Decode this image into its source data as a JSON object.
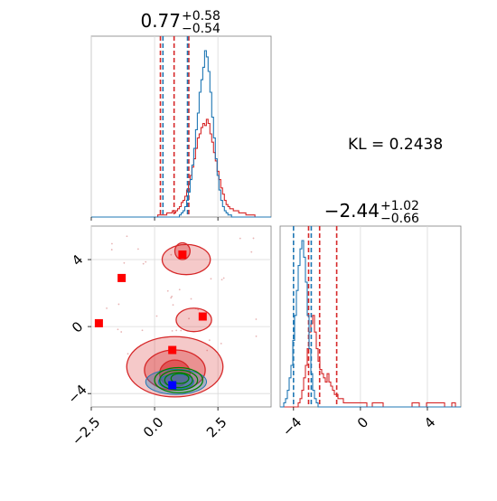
{
  "chart_data": [
    {
      "type": "histogram",
      "panel": "marginal-param-1",
      "title": {
        "base": "0.77",
        "plus": "+0.58",
        "minus": "−0.54"
      },
      "xlim": [
        -2.5,
        4.6
      ],
      "x_ticks": [
        -2.5,
        0.0,
        2.5
      ],
      "grid": true,
      "colors": {
        "red": "#d62728",
        "blue": "#1f77b4"
      },
      "series": [
        {
          "color": "#d62728",
          "quantiles": [
            0.23,
            0.77,
            1.35
          ],
          "bins_range": [
            -2.5,
            4.6
          ],
          "values": [
            0,
            0,
            0,
            0,
            0,
            0,
            0,
            0,
            0,
            0,
            0,
            0,
            0,
            0,
            0,
            0,
            0,
            0,
            0,
            0,
            0,
            0,
            0,
            0,
            0,
            0,
            0,
            0,
            0,
            0,
            0,
            0,
            0,
            0,
            0,
            0,
            0,
            1,
            1,
            1,
            1,
            1,
            2,
            2,
            2,
            3,
            2,
            3,
            4,
            5,
            7,
            8,
            10,
            13,
            16,
            20,
            24,
            28,
            33,
            38,
            40,
            43,
            45,
            44,
            47,
            45,
            40,
            36,
            31,
            27,
            22,
            18,
            14,
            11,
            8,
            6,
            5,
            4,
            4,
            3,
            3,
            3,
            2,
            2,
            2,
            2,
            1,
            1,
            1,
            1,
            1,
            0,
            0,
            0,
            0,
            0,
            0,
            0,
            0,
            0
          ]
        },
        {
          "color": "#1f77b4",
          "quantiles": [
            0.33,
            1.3
          ],
          "bins_range": [
            -2.5,
            4.6
          ],
          "values": [
            0,
            0,
            0,
            0,
            0,
            0,
            0,
            0,
            0,
            0,
            0,
            0,
            0,
            0,
            0,
            0,
            0,
            0,
            0,
            0,
            0,
            0,
            0,
            0,
            0,
            0,
            0,
            0,
            0,
            0,
            0,
            0,
            0,
            0,
            0,
            0,
            0,
            0,
            0,
            0,
            0,
            0,
            0,
            0,
            0,
            0,
            0,
            0,
            0,
            1,
            2,
            3,
            5,
            8,
            12,
            18,
            25,
            33,
            42,
            50,
            60,
            66,
            72,
            80,
            77,
            70,
            60,
            48,
            38,
            28,
            20,
            13,
            8,
            5,
            3,
            2,
            1,
            1,
            0,
            0,
            0,
            0,
            0,
            0,
            0,
            0,
            0,
            0,
            0,
            0,
            0,
            0,
            0,
            0,
            0,
            0,
            0,
            0,
            0,
            0
          ]
        }
      ]
    },
    {
      "type": "histogram",
      "panel": "marginal-param-2",
      "title": {
        "base": "−2.44",
        "plus": "+1.02",
        "minus": "−0.66"
      },
      "xlim": [
        -4.8,
        6.0
      ],
      "x_ticks": [
        -4,
        0,
        4
      ],
      "grid": true,
      "series": [
        {
          "color": "#d62728",
          "quantiles": [
            -3.1,
            -2.44,
            -1.42
          ],
          "bins_range": [
            -4.8,
            6.0
          ],
          "values": [
            0,
            0,
            0,
            0,
            0,
            0,
            0,
            0,
            0,
            0,
            1,
            2,
            4,
            7,
            10,
            14,
            18,
            20,
            22,
            18,
            14,
            11,
            9,
            8,
            7,
            6,
            8,
            6,
            5,
            4,
            3,
            3,
            2,
            2,
            2,
            1,
            1,
            1,
            1,
            1,
            1,
            1,
            1,
            1,
            1,
            1,
            1,
            1,
            0,
            0,
            0,
            1,
            1,
            1,
            1,
            1,
            1,
            0,
            0,
            0,
            0,
            0,
            0,
            0,
            0,
            0,
            0,
            0,
            0,
            0,
            0,
            0,
            0,
            1,
            1,
            1,
            1,
            0,
            0,
            0,
            0,
            1,
            1,
            1,
            1,
            1,
            1,
            1,
            1,
            1,
            1,
            0,
            0,
            0,
            0,
            1,
            1,
            0,
            0,
            0
          ]
        },
        {
          "color": "#1f77b4",
          "quantiles": [
            -4.0,
            -2.94
          ],
          "bins_range": [
            -4.8,
            6.0
          ],
          "values": [
            0,
            0,
            1,
            2,
            4,
            7,
            10,
            16,
            22,
            28,
            34,
            38,
            40,
            36,
            30,
            22,
            14,
            8,
            4,
            2,
            1,
            0,
            0,
            0,
            0,
            0,
            0,
            0,
            0,
            0,
            0,
            0,
            0,
            0,
            0,
            0,
            0,
            0,
            0,
            0,
            0,
            0,
            0,
            0,
            0,
            0,
            0,
            0,
            0,
            0,
            0,
            0,
            0,
            0,
            0,
            0,
            0,
            0,
            0,
            0,
            0,
            0,
            0,
            0,
            0,
            0,
            0,
            0,
            0,
            0,
            0,
            0,
            0,
            0,
            0,
            0,
            0,
            0,
            0,
            0,
            0,
            0,
            0,
            0,
            0,
            0,
            0,
            0,
            0,
            0,
            0,
            0,
            0,
            0,
            0,
            0,
            0,
            0,
            0,
            0
          ]
        }
      ]
    },
    {
      "type": "contour",
      "panel": "joint-param-1-vs-param-2",
      "xlim": [
        -2.5,
        4.6
      ],
      "ylim": [
        -4.8,
        6.0
      ],
      "x_ticks": [
        -2.5,
        0.0,
        2.5
      ],
      "y_ticks": [
        -4,
        0,
        4
      ],
      "grid": true,
      "red_contours": [
        {
          "level": "outer",
          "center": [
            0.8,
            -2.4
          ],
          "rx": 1.9,
          "ry": 1.8
        },
        {
          "level": "outer",
          "center": [
            1.25,
            4.0
          ],
          "rx": 0.95,
          "ry": 0.9
        },
        {
          "level": "outer",
          "center": [
            1.55,
            0.4
          ],
          "rx": 0.7,
          "ry": 0.7
        },
        {
          "level": "mid",
          "center": [
            0.8,
            -2.6
          ],
          "rx": 1.2,
          "ry": 1.2
        },
        {
          "level": "mid",
          "center": [
            1.1,
            4.5
          ],
          "rx": 0.3,
          "ry": 0.5
        },
        {
          "level": "inner",
          "center": [
            0.8,
            -2.8
          ],
          "rx": 0.6,
          "ry": 0.8
        }
      ],
      "blue_contours": [
        {
          "center": [
            0.85,
            -3.3
          ],
          "rx": 1.2,
          "ry": 0.75
        },
        {
          "center": [
            0.85,
            -3.3
          ],
          "rx": 0.7,
          "ry": 0.45
        }
      ],
      "green_contours": [
        {
          "center": [
            0.95,
            -3.2
          ],
          "rx": 0.95,
          "ry": 0.75
        },
        {
          "center": [
            0.95,
            -3.2
          ],
          "rx": 0.75,
          "ry": 0.6
        },
        {
          "center": [
            0.95,
            -3.2
          ],
          "rx": 0.55,
          "ry": 0.45
        },
        {
          "center": [
            1.0,
            -3.1
          ],
          "rx": 0.35,
          "ry": 0.3
        }
      ],
      "red_markers": [
        [
          -2.2,
          0.2
        ],
        [
          -1.3,
          2.9
        ],
        [
          1.1,
          4.3
        ],
        [
          1.9,
          0.6
        ],
        [
          0.7,
          -1.4
        ]
      ],
      "blue_markers": [
        [
          0.7,
          -3.5
        ]
      ],
      "scatter_points_count": 40
    }
  ],
  "annotation": {
    "kl_text": "KL = 0.2438"
  }
}
